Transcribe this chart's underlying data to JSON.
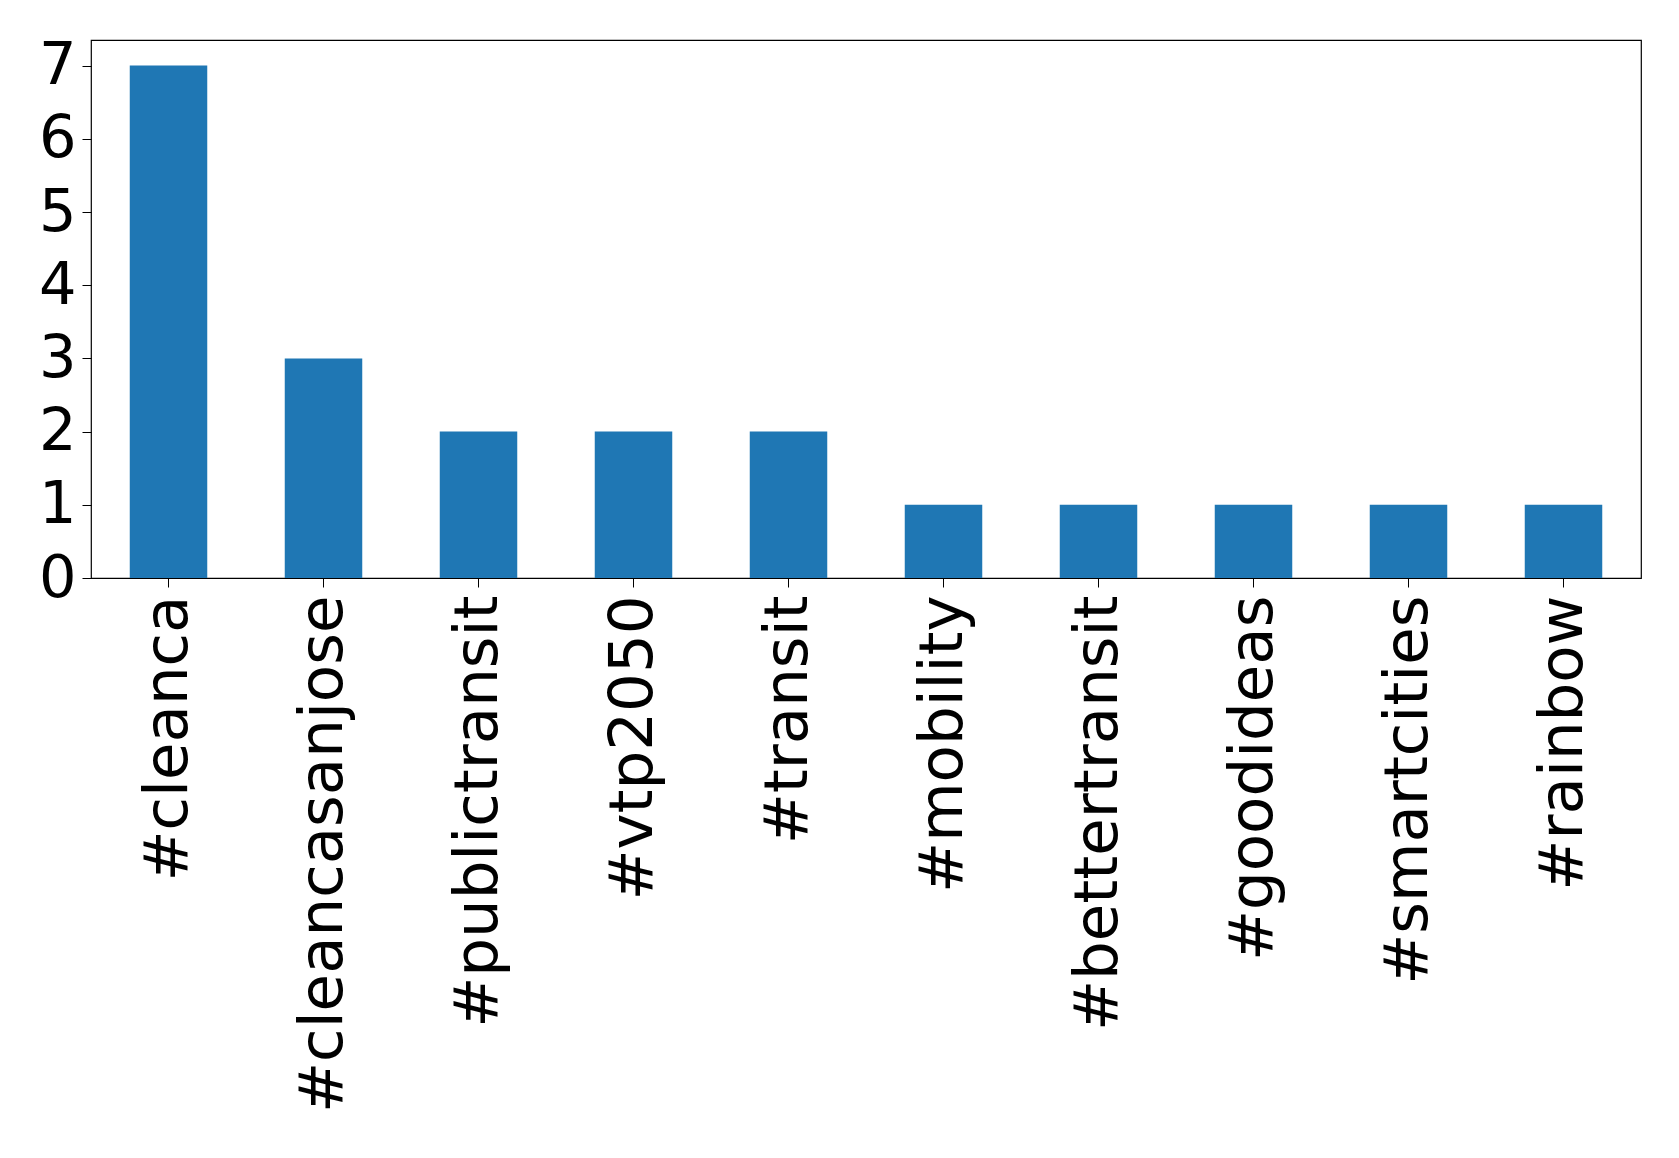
{
  "chart_data": {
    "type": "bar",
    "categories": [
      "#cleanca",
      "#cleancasanjose",
      "#publictransit",
      "#vtp2050",
      "#transit",
      "#mobility",
      "#bettertransit",
      "#goodideas",
      "#smartcities",
      "#rainbow"
    ],
    "values": [
      7,
      3,
      2,
      2,
      2,
      1,
      1,
      1,
      1,
      1
    ],
    "color": "#1f77b4",
    "ylim": [
      0,
      7.35
    ],
    "yticks": [
      0,
      1,
      2,
      3,
      4,
      5,
      6,
      7
    ],
    "grid": false
  }
}
